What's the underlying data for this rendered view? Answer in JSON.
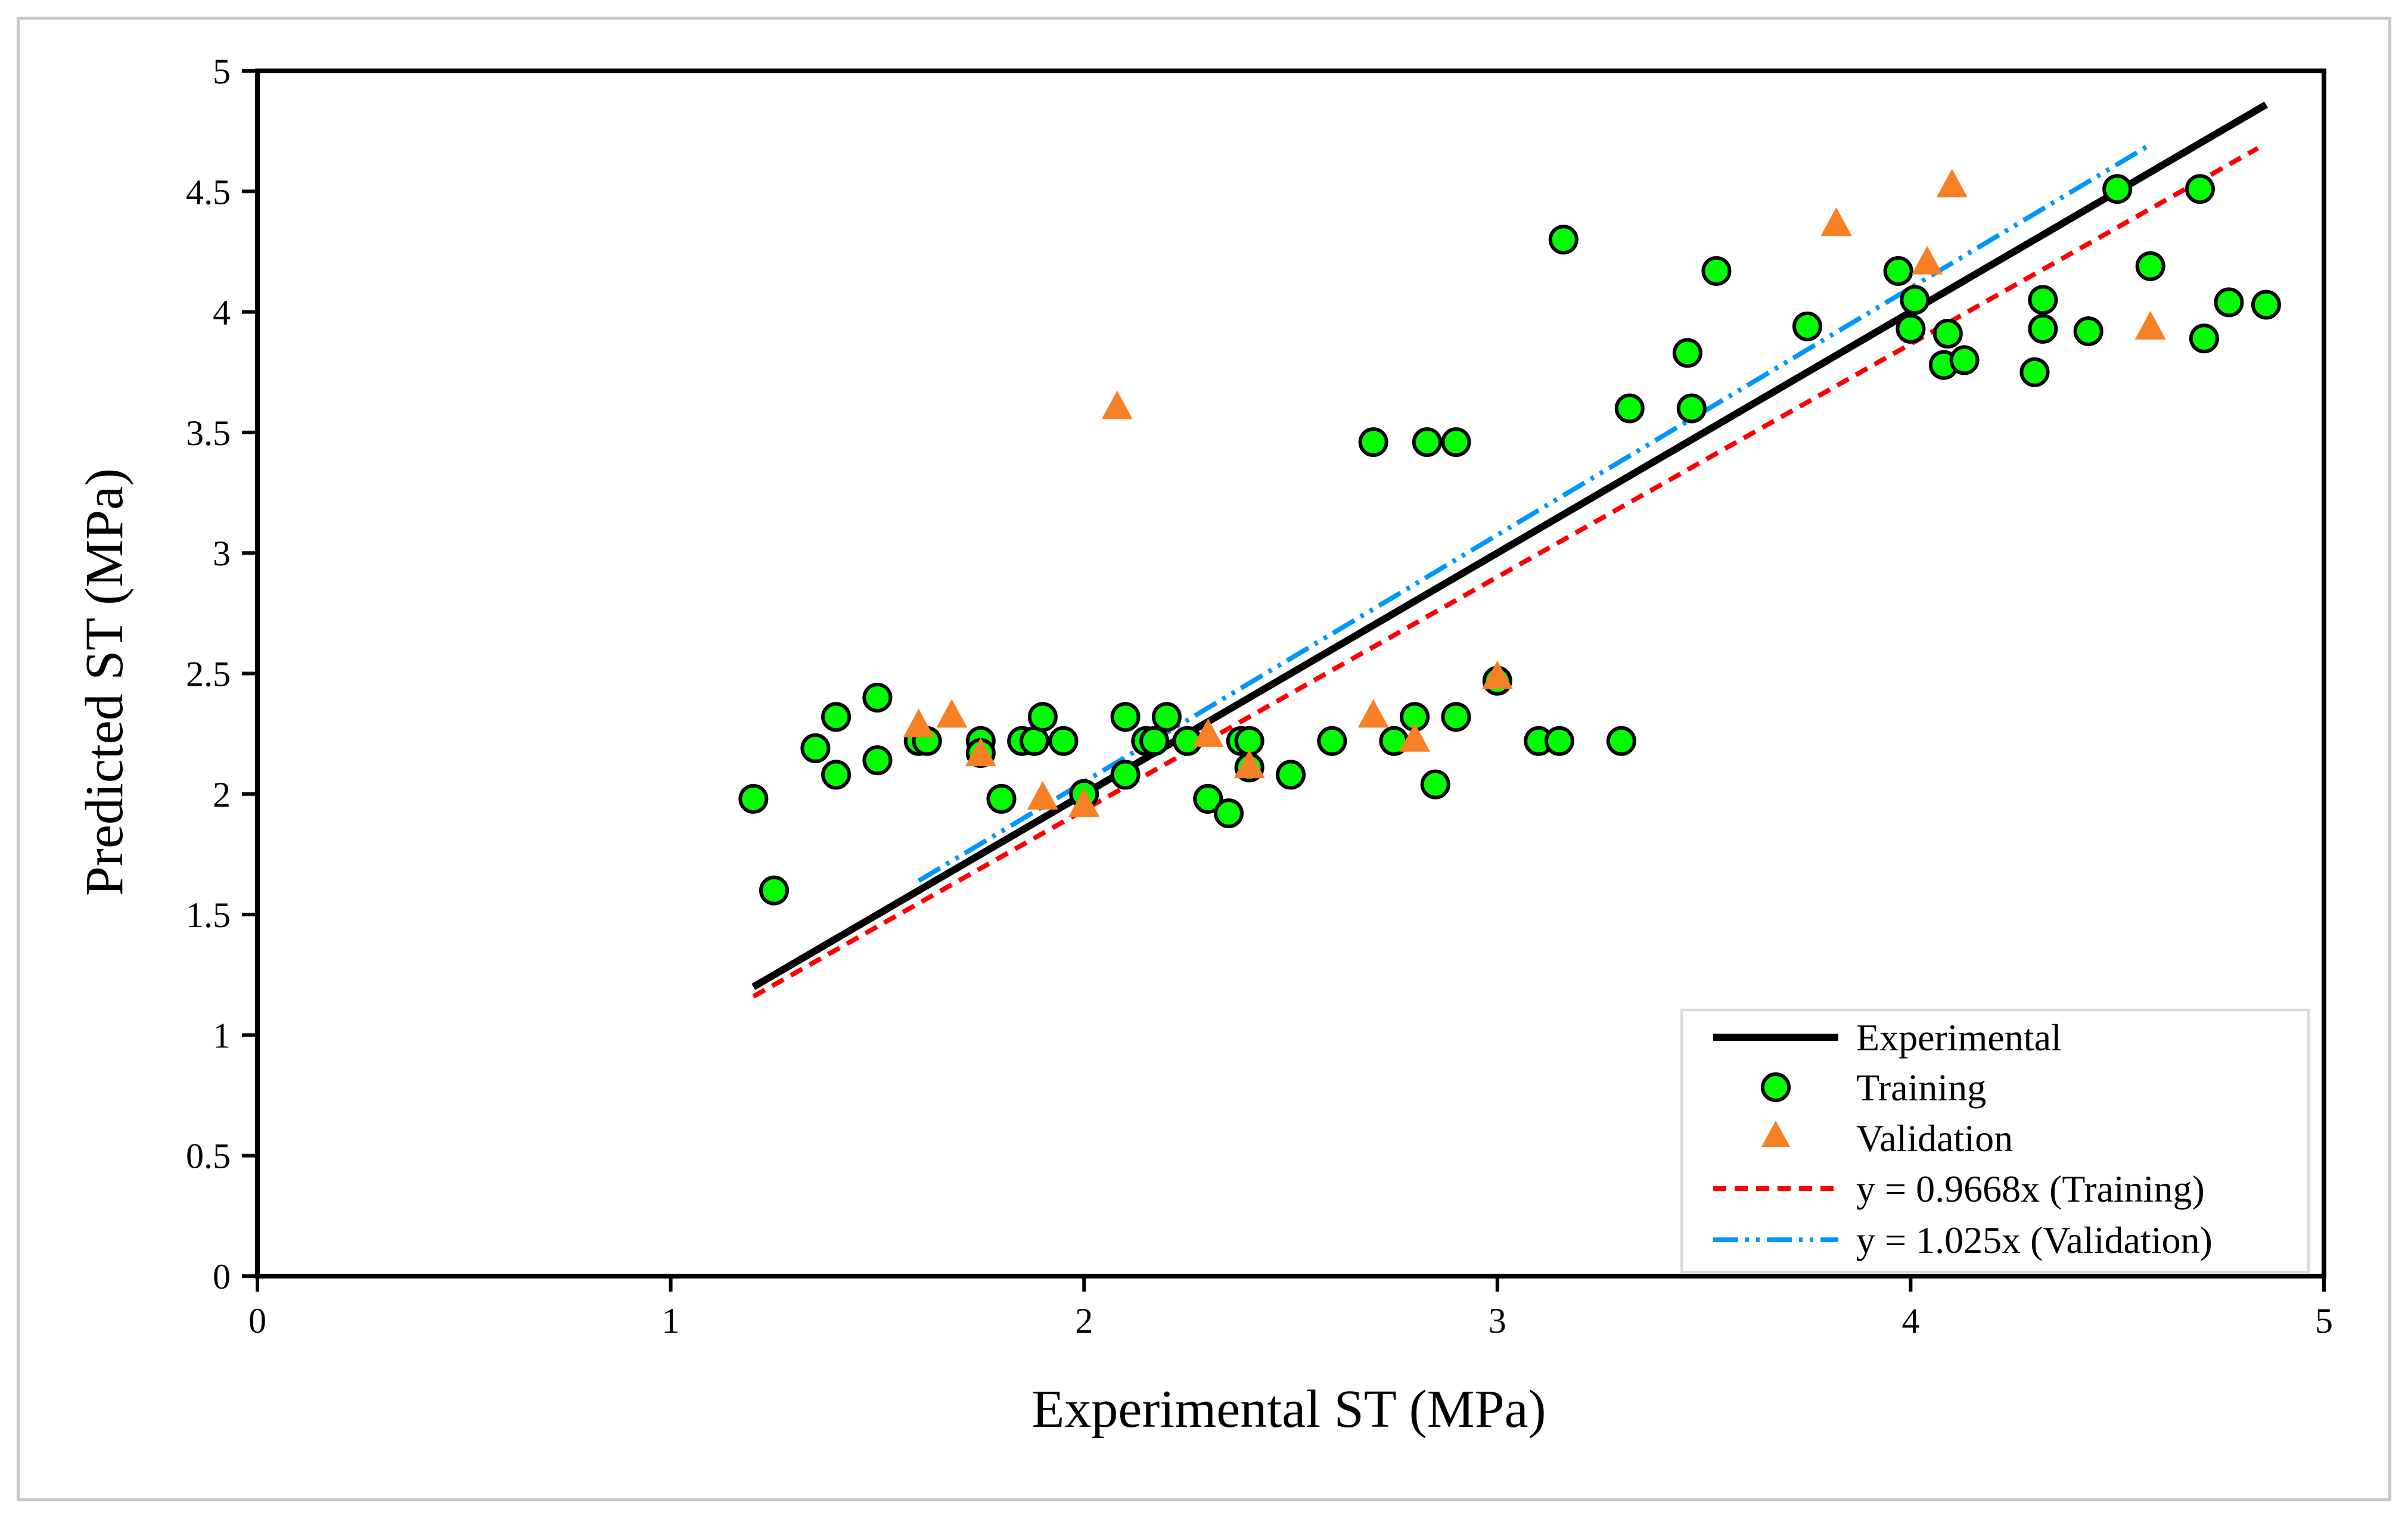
{
  "chart_data": {
    "type": "scatter",
    "xlabel": "Experimental ST (MPa)",
    "ylabel": "Predicted ST (MPa)",
    "xlim": [
      0,
      5
    ],
    "ylim": [
      0,
      5
    ],
    "xticks": [
      "0",
      "1",
      "2",
      "3",
      "4",
      "5"
    ],
    "yticks": [
      "0",
      "0.5",
      "1",
      "1.5",
      "2",
      "2.5",
      "3",
      "3.5",
      "4",
      "4.5",
      "5"
    ],
    "legend_position": "bottom-right",
    "colors": {
      "experimental": "#000000",
      "training_fill": "#00ff00",
      "training_edge": "#000000",
      "validation": "#f58025",
      "training_fit": "#ff0000",
      "validation_fit": "#0096ff"
    },
    "series": [
      {
        "name": "Experimental",
        "kind": "line",
        "style": "solid",
        "x": [
          1.2,
          4.86
        ],
        "y": [
          1.2,
          4.86
        ]
      },
      {
        "name": "Training",
        "kind": "scatter",
        "marker": "circle",
        "points": [
          [
            1.2,
            1.98
          ],
          [
            1.25,
            1.6
          ],
          [
            1.35,
            2.19
          ],
          [
            1.4,
            2.32
          ],
          [
            1.4,
            2.08
          ],
          [
            1.5,
            2.4
          ],
          [
            1.5,
            2.14
          ],
          [
            1.6,
            2.22
          ],
          [
            1.62,
            2.22
          ],
          [
            1.75,
            2.22
          ],
          [
            1.75,
            2.17
          ],
          [
            1.8,
            1.98
          ],
          [
            1.85,
            2.22
          ],
          [
            1.88,
            2.22
          ],
          [
            1.9,
            2.32
          ],
          [
            1.95,
            2.22
          ],
          [
            2.0,
            2.0
          ],
          [
            2.1,
            2.32
          ],
          [
            2.1,
            2.08
          ],
          [
            2.15,
            2.22
          ],
          [
            2.17,
            2.22
          ],
          [
            2.2,
            2.32
          ],
          [
            2.25,
            2.22
          ],
          [
            2.3,
            1.98
          ],
          [
            2.35,
            1.92
          ],
          [
            2.38,
            2.22
          ],
          [
            2.4,
            2.22
          ],
          [
            2.4,
            2.11
          ],
          [
            2.5,
            2.08
          ],
          [
            2.6,
            2.22
          ],
          [
            2.7,
            3.46
          ],
          [
            2.75,
            2.22
          ],
          [
            2.8,
            2.32
          ],
          [
            2.83,
            3.46
          ],
          [
            2.85,
            2.04
          ],
          [
            2.9,
            2.32
          ],
          [
            2.9,
            3.46
          ],
          [
            3.0,
            2.47
          ],
          [
            3.1,
            2.22
          ],
          [
            3.15,
            2.22
          ],
          [
            3.16,
            4.3
          ],
          [
            3.3,
            2.22
          ],
          [
            3.32,
            3.6
          ],
          [
            3.46,
            3.83
          ],
          [
            3.47,
            3.6
          ],
          [
            3.53,
            4.17
          ],
          [
            3.75,
            3.94
          ],
          [
            3.97,
            4.17
          ],
          [
            4.0,
            3.93
          ],
          [
            4.01,
            4.05
          ],
          [
            4.08,
            3.78
          ],
          [
            4.09,
            3.91
          ],
          [
            4.13,
            3.8
          ],
          [
            4.3,
            3.75
          ],
          [
            4.32,
            3.93
          ],
          [
            4.32,
            4.05
          ],
          [
            4.43,
            3.92
          ],
          [
            4.5,
            4.51
          ],
          [
            4.58,
            4.19
          ],
          [
            4.7,
            4.51
          ],
          [
            4.71,
            3.89
          ],
          [
            4.77,
            4.04
          ],
          [
            4.86,
            4.03
          ]
        ]
      },
      {
        "name": "Validation",
        "kind": "scatter",
        "marker": "triangle",
        "points": [
          [
            1.6,
            2.28
          ],
          [
            1.68,
            2.32
          ],
          [
            1.75,
            2.16
          ],
          [
            1.9,
            1.98
          ],
          [
            2.0,
            1.95
          ],
          [
            2.08,
            3.6
          ],
          [
            2.3,
            2.24
          ],
          [
            2.4,
            2.11
          ],
          [
            2.7,
            2.32
          ],
          [
            2.8,
            2.22
          ],
          [
            3.0,
            2.48
          ],
          [
            3.82,
            4.36
          ],
          [
            4.04,
            4.2
          ],
          [
            4.1,
            4.52
          ],
          [
            4.58,
            3.93
          ]
        ]
      },
      {
        "name": "y = 0.9668x (Training)",
        "kind": "line",
        "style": "dashed",
        "slope": 0.9668,
        "x": [
          1.2,
          4.84
        ]
      },
      {
        "name": "y = 1.025x (Validation)",
        "kind": "line",
        "style": "dash-dot-dot",
        "slope": 1.025,
        "x": [
          1.6,
          4.58
        ]
      }
    ]
  }
}
